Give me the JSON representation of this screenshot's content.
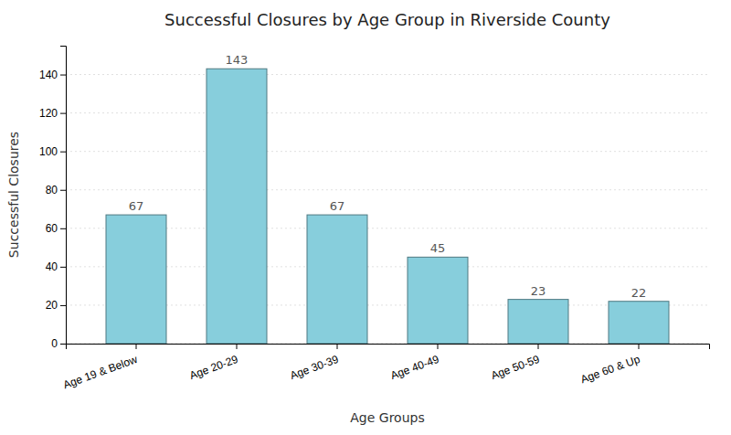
{
  "chart_data": {
    "type": "bar",
    "title": "Successful Closures by Age Group in Riverside County",
    "xlabel": "Age Groups",
    "ylabel": "Successful Closures",
    "categories": [
      "Age 19 & Below",
      "Age 20-29",
      "Age 30-39",
      "Age 40-49",
      "Age 50-59",
      "Age 60 & Up"
    ],
    "values": [
      67,
      143,
      67,
      45,
      23,
      22
    ],
    "color": "#87CEDC",
    "ylim": [
      0,
      155
    ],
    "yticks": [
      0,
      20,
      40,
      60,
      80,
      100,
      120,
      140
    ],
    "grid": true,
    "data_labels": true
  }
}
